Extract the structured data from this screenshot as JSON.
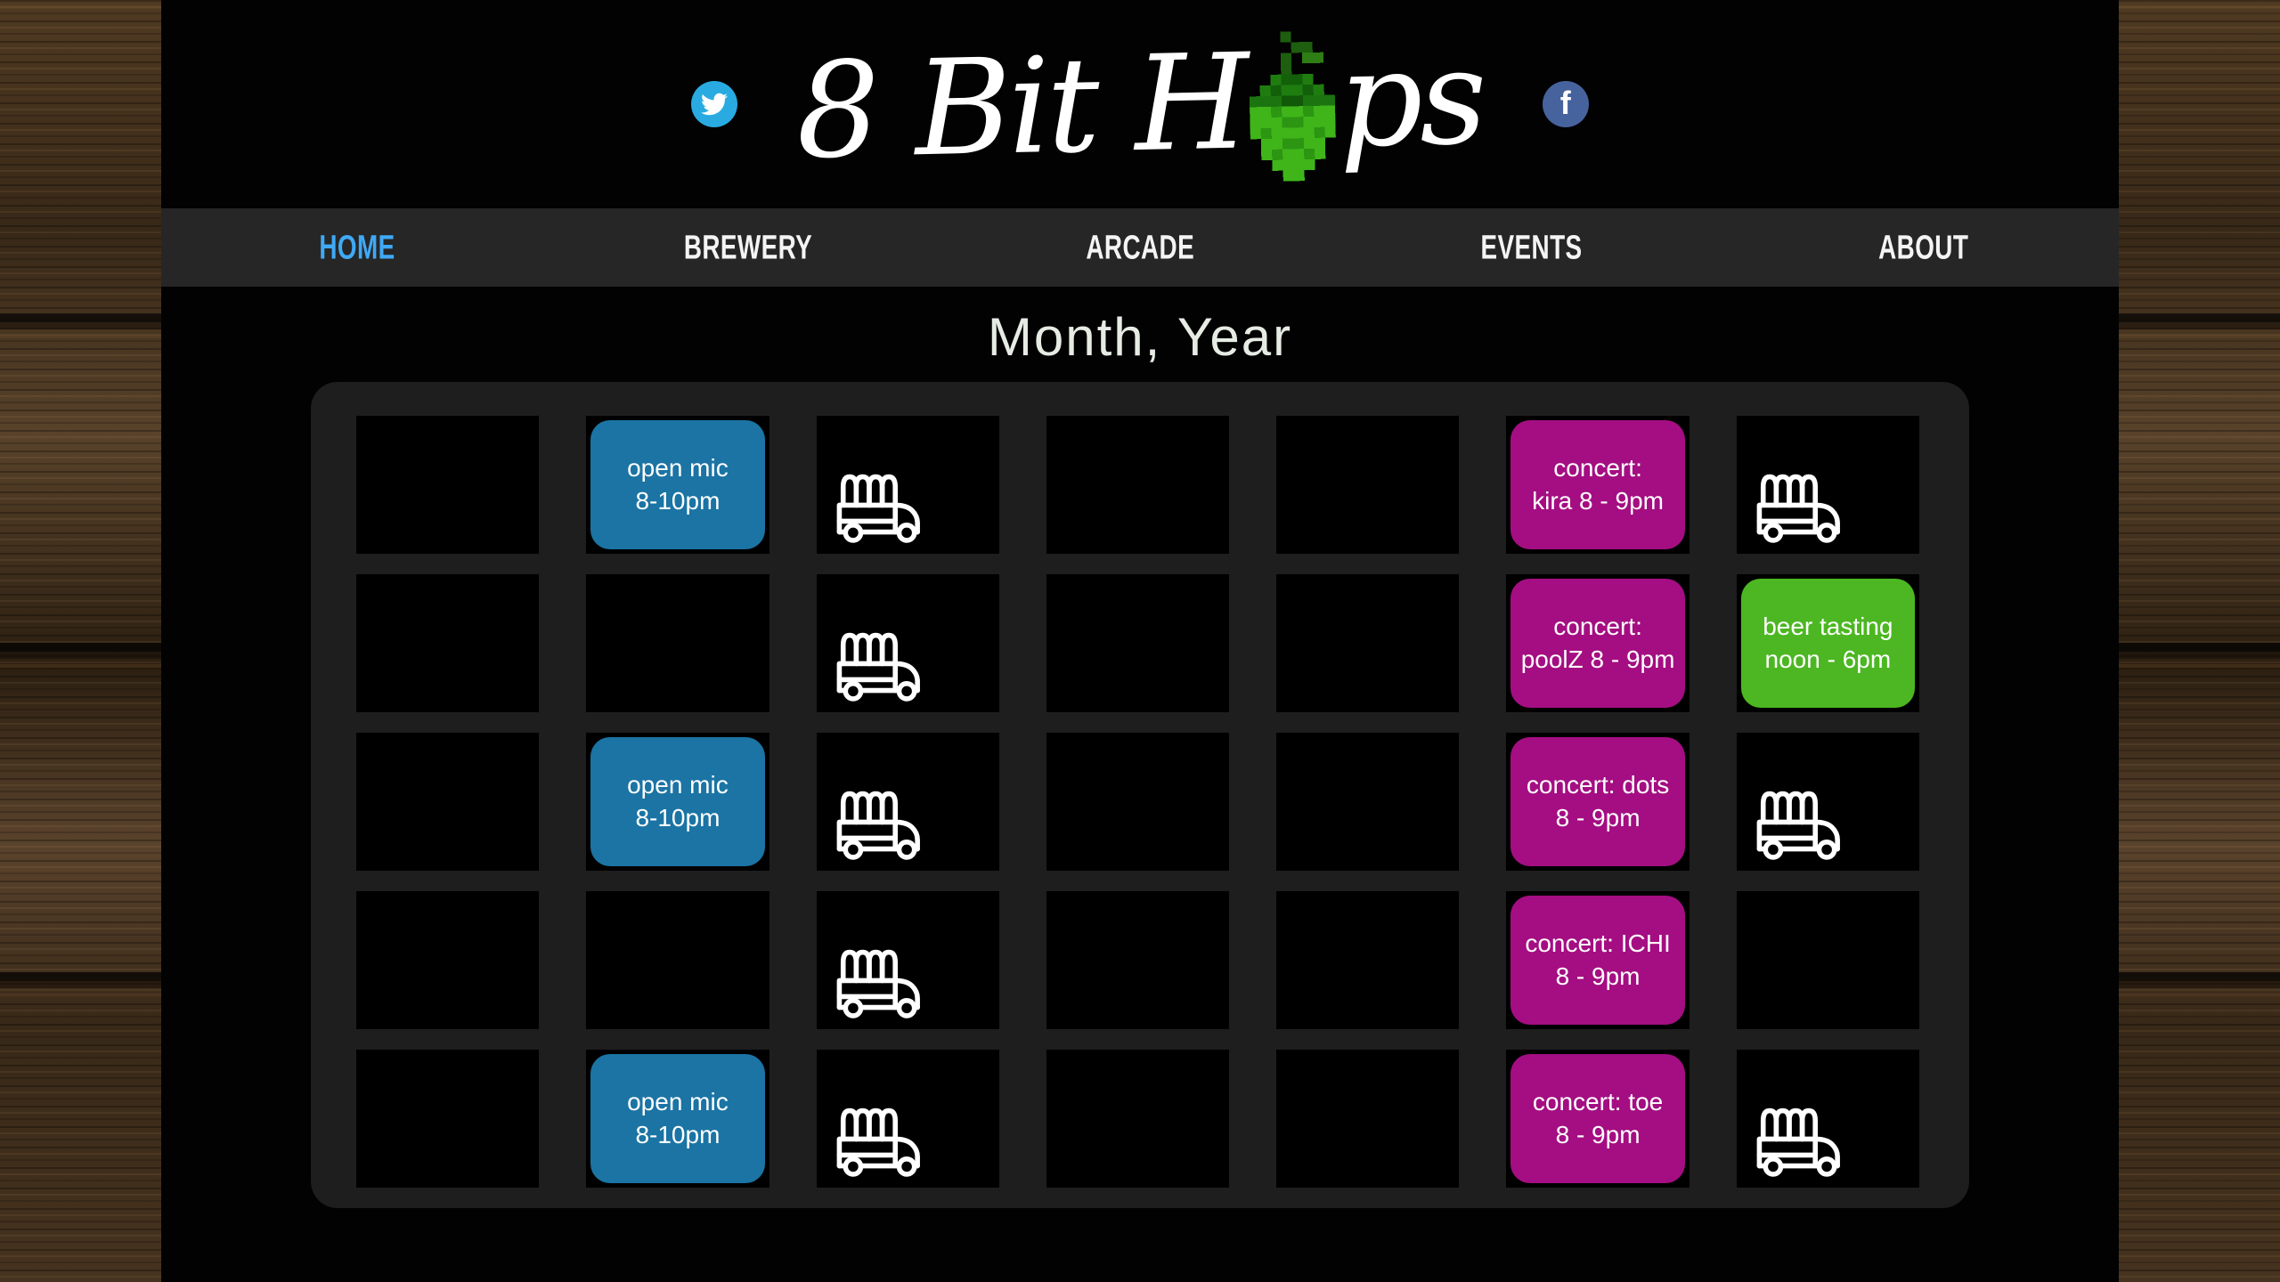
{
  "header": {
    "logo_left": "8 Bit H",
    "logo_right": "ps",
    "social": [
      {
        "name": "twitter",
        "icon": "twitter-bird-icon"
      },
      {
        "name": "facebook",
        "icon": "facebook-f-icon",
        "glyph": "f"
      }
    ]
  },
  "nav": {
    "items": [
      {
        "label": "HOME",
        "active": true
      },
      {
        "label": "BREWERY",
        "active": false
      },
      {
        "label": "ARCADE",
        "active": false
      },
      {
        "label": "EVENTS",
        "active": false
      },
      {
        "label": "ABOUT",
        "active": false
      }
    ]
  },
  "calendar": {
    "title": "Month, Year",
    "columns": 7,
    "rows": 5,
    "cells": [
      {
        "type": "empty"
      },
      {
        "type": "event",
        "category": "open_mic",
        "text": "open mic\n8-10pm"
      },
      {
        "type": "truck",
        "icon": "food-truck-icon"
      },
      {
        "type": "empty"
      },
      {
        "type": "empty"
      },
      {
        "type": "event",
        "category": "concert",
        "text": "concert:\nkira 8 - 9pm"
      },
      {
        "type": "truck",
        "icon": "food-truck-icon"
      },
      {
        "type": "empty"
      },
      {
        "type": "empty"
      },
      {
        "type": "truck",
        "icon": "food-truck-icon"
      },
      {
        "type": "empty"
      },
      {
        "type": "empty"
      },
      {
        "type": "event",
        "category": "concert",
        "text": "concert:\npoolZ 8 - 9pm"
      },
      {
        "type": "event",
        "category": "tasting",
        "text": "beer tasting\nnoon - 6pm"
      },
      {
        "type": "empty"
      },
      {
        "type": "event",
        "category": "open_mic",
        "text": "open mic\n8-10pm"
      },
      {
        "type": "truck",
        "icon": "food-truck-icon"
      },
      {
        "type": "empty"
      },
      {
        "type": "empty"
      },
      {
        "type": "event",
        "category": "concert",
        "text": "concert: dots\n8 - 9pm"
      },
      {
        "type": "truck",
        "icon": "food-truck-icon"
      },
      {
        "type": "empty"
      },
      {
        "type": "empty"
      },
      {
        "type": "truck",
        "icon": "food-truck-icon"
      },
      {
        "type": "empty"
      },
      {
        "type": "empty"
      },
      {
        "type": "event",
        "category": "concert",
        "text": "concert: ICHI\n8 - 9pm"
      },
      {
        "type": "empty"
      },
      {
        "type": "empty"
      },
      {
        "type": "event",
        "category": "open_mic",
        "text": "open mic\n8-10pm"
      },
      {
        "type": "truck",
        "icon": "food-truck-icon"
      },
      {
        "type": "empty"
      },
      {
        "type": "empty"
      },
      {
        "type": "event",
        "category": "concert",
        "text": "concert: toe\n8 - 9pm"
      },
      {
        "type": "truck",
        "icon": "food-truck-icon"
      }
    ]
  },
  "colors": {
    "open_mic": "#1B74A4",
    "concert": "#A40E82",
    "tasting": "#4CB722",
    "nav_active": "#3FA9F5",
    "twitter_blue": "#29ABE2",
    "facebook_blue": "#47639E",
    "hop_bright": "#3FB51A",
    "hop_dark": "#1F7D10"
  }
}
